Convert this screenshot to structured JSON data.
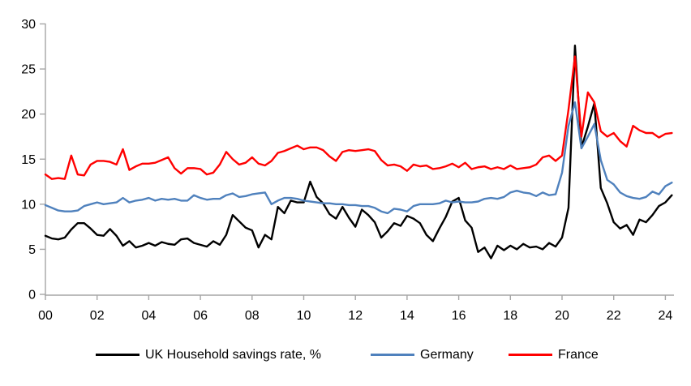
{
  "chart_data": {
    "type": "line",
    "title": "",
    "xlabel": "",
    "ylabel": "",
    "x_axis": {
      "frequency": "quarterly",
      "start_year": 2000,
      "end_year_fraction": 2024.25,
      "tick_labels": [
        "00",
        "02",
        "04",
        "06",
        "08",
        "10",
        "12",
        "14",
        "16",
        "18",
        "20",
        "22",
        "24"
      ],
      "tick_years": [
        2000,
        2002,
        2004,
        2006,
        2008,
        2010,
        2012,
        2014,
        2016,
        2018,
        2020,
        2022,
        2024
      ]
    },
    "y_axis": {
      "min": 0,
      "max": 30,
      "tick_step": 5,
      "tick_labels": [
        "0",
        "5",
        "10",
        "15",
        "20",
        "25",
        "30"
      ]
    },
    "grid": false,
    "legend_position": "bottom",
    "series": [
      {
        "name": "UK Household savings rate, %",
        "color": "#000000",
        "values": [
          6.5,
          6.2,
          6.1,
          6.3,
          7.2,
          7.9,
          7.9,
          7.3,
          6.6,
          6.5,
          7.25,
          6.5,
          5.4,
          5.9,
          5.2,
          5.4,
          5.7,
          5.4,
          5.8,
          5.6,
          5.5,
          6.1,
          6.2,
          5.7,
          5.5,
          5.3,
          5.9,
          5.5,
          6.6,
          8.8,
          8.1,
          7.4,
          7.1,
          5.2,
          6.6,
          6.1,
          9.7,
          9.0,
          10.4,
          10.2,
          10.2,
          12.5,
          10.8,
          10.1,
          8.9,
          8.4,
          9.7,
          8.5,
          7.5,
          9.4,
          8.8,
          8.0,
          6.3,
          7.0,
          7.9,
          7.6,
          8.7,
          8.4,
          7.9,
          6.6,
          5.9,
          7.3,
          8.6,
          10.3,
          10.7,
          8.2,
          7.4,
          4.7,
          5.2,
          4.0,
          5.4,
          4.9,
          5.4,
          5.0,
          5.6,
          5.2,
          5.3,
          5.0,
          5.7,
          5.3,
          6.3,
          9.6,
          27.6,
          16.3,
          18.6,
          21.2,
          11.8,
          10.1,
          8.0,
          7.3,
          7.7,
          6.6,
          8.3,
          8.0,
          8.8,
          9.8,
          10.2,
          11.0
        ]
      },
      {
        "name": "Germany",
        "color": "#4f81bd",
        "values": [
          9.9,
          9.6,
          9.3,
          9.2,
          9.2,
          9.3,
          9.8,
          10.0,
          10.2,
          10.0,
          10.1,
          10.2,
          10.7,
          10.2,
          10.4,
          10.5,
          10.7,
          10.4,
          10.6,
          10.5,
          10.6,
          10.4,
          10.4,
          11.0,
          10.7,
          10.5,
          10.6,
          10.6,
          11.0,
          11.2,
          10.8,
          10.9,
          11.1,
          11.2,
          11.3,
          10.0,
          10.4,
          10.7,
          10.7,
          10.6,
          10.4,
          10.3,
          10.2,
          10.1,
          10.1,
          10.0,
          10.0,
          9.9,
          9.9,
          9.8,
          9.8,
          9.6,
          9.2,
          9.0,
          9.5,
          9.4,
          9.2,
          9.8,
          10.0,
          10.0,
          10.0,
          10.1,
          10.4,
          10.2,
          10.3,
          10.2,
          10.2,
          10.3,
          10.6,
          10.7,
          10.6,
          10.8,
          11.3,
          11.5,
          11.3,
          11.2,
          10.9,
          11.3,
          11.0,
          11.1,
          13.5,
          18.7,
          21.3,
          16.2,
          17.5,
          18.9,
          14.9,
          12.7,
          12.2,
          11.3,
          10.9,
          10.7,
          10.6,
          10.8,
          11.4,
          11.1,
          12.0,
          12.4
        ]
      },
      {
        "name": "France",
        "color": "#ff0000",
        "values": [
          13.3,
          12.8,
          12.9,
          12.8,
          15.4,
          13.3,
          13.2,
          14.4,
          14.8,
          14.8,
          14.7,
          14.4,
          16.1,
          13.8,
          14.2,
          14.5,
          14.5,
          14.6,
          14.9,
          15.2,
          14.0,
          13.4,
          14.0,
          14.0,
          13.9,
          13.3,
          13.5,
          14.4,
          15.8,
          15.0,
          14.4,
          14.6,
          15.2,
          14.5,
          14.3,
          14.8,
          15.7,
          15.9,
          16.2,
          16.5,
          16.1,
          16.3,
          16.3,
          16.0,
          15.3,
          14.8,
          15.8,
          16.0,
          15.9,
          16.0,
          16.1,
          15.9,
          14.9,
          14.3,
          14.4,
          14.2,
          13.7,
          14.4,
          14.2,
          14.3,
          13.9,
          14.0,
          14.2,
          14.5,
          14.1,
          14.6,
          13.9,
          14.1,
          14.2,
          13.9,
          14.1,
          13.9,
          14.3,
          13.9,
          14.0,
          14.1,
          14.4,
          15.2,
          15.4,
          14.8,
          15.4,
          20.5,
          26.4,
          17.5,
          22.4,
          21.3,
          18.1,
          17.5,
          17.9,
          17.0,
          16.4,
          18.7,
          18.2,
          17.9,
          17.9,
          17.4,
          17.8,
          17.9
        ]
      }
    ]
  },
  "colors": {
    "axis": "#a6a6a6",
    "tick_text": "#000000",
    "background": "#ffffff"
  }
}
